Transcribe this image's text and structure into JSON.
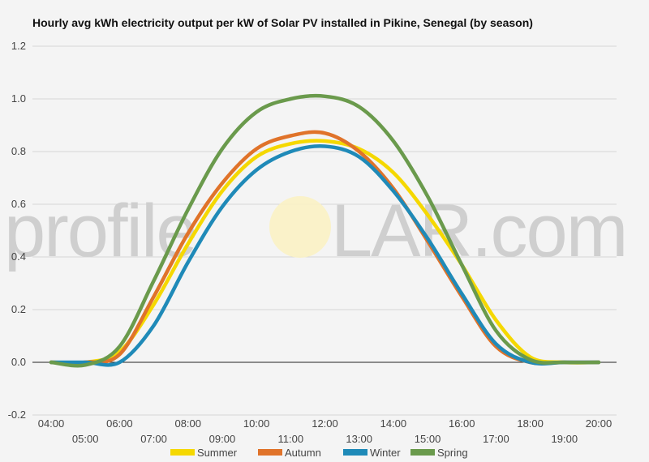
{
  "chart_data": {
    "type": "line",
    "title": "Hourly avg kWh electricity output per kW of Solar PV installed in Pikine, Senegal (by season)",
    "xlabel": "",
    "ylabel": "",
    "x": [
      "04:00",
      "05:00",
      "06:00",
      "07:00",
      "08:00",
      "09:00",
      "10:00",
      "11:00",
      "12:00",
      "13:00",
      "14:00",
      "15:00",
      "16:00",
      "17:00",
      "18:00",
      "19:00",
      "20:00"
    ],
    "yticks": [
      "-0.2",
      "0.0",
      "0.2",
      "0.4",
      "0.6",
      "0.8",
      "1.0",
      "1.2"
    ],
    "ylim": [
      -0.2,
      1.2
    ],
    "grid": true,
    "legend": "bottom",
    "series": [
      {
        "name": "Summer",
        "color": "#f5d800",
        "values": [
          0.0,
          0.0,
          0.04,
          0.22,
          0.45,
          0.65,
          0.78,
          0.83,
          0.84,
          0.81,
          0.72,
          0.56,
          0.37,
          0.16,
          0.02,
          0.0,
          0.0
        ]
      },
      {
        "name": "Autumn",
        "color": "#e0732a",
        "values": [
          0.0,
          0.0,
          0.03,
          0.25,
          0.49,
          0.68,
          0.81,
          0.86,
          0.87,
          0.8,
          0.66,
          0.46,
          0.25,
          0.06,
          0.0,
          0.0,
          0.0
        ]
      },
      {
        "name": "Winter",
        "color": "#1f8ab8",
        "values": [
          0.0,
          0.0,
          0.0,
          0.14,
          0.38,
          0.59,
          0.73,
          0.8,
          0.82,
          0.78,
          0.65,
          0.47,
          0.26,
          0.07,
          0.0,
          0.0,
          0.0
        ]
      },
      {
        "name": "Spring",
        "color": "#6a9a4c",
        "values": [
          0.0,
          -0.01,
          0.06,
          0.31,
          0.58,
          0.81,
          0.95,
          1.0,
          1.01,
          0.97,
          0.84,
          0.63,
          0.37,
          0.12,
          0.01,
          0.0,
          0.0
        ]
      }
    ]
  },
  "watermark": {
    "left": "profile",
    "right": "LAR.com"
  }
}
